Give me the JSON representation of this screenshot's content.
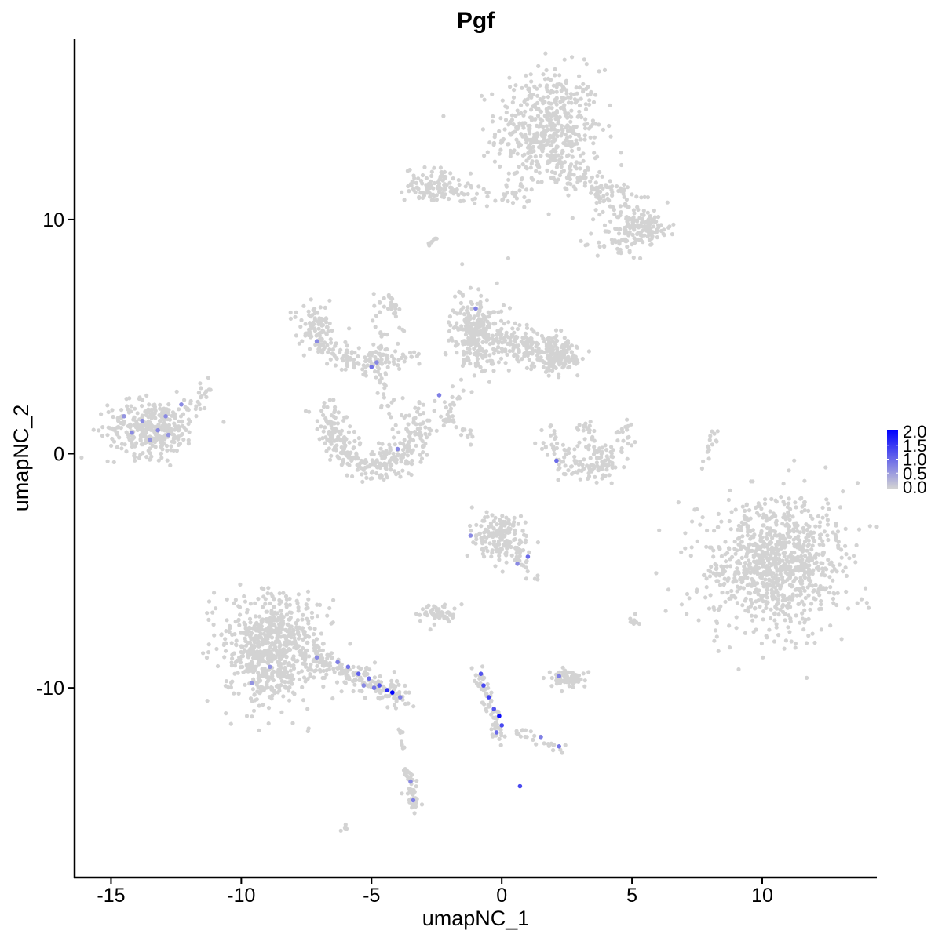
{
  "chart_data": {
    "type": "scatter",
    "title": "Pgf",
    "xlabel": "umapNC_1",
    "ylabel": "umapNC_2",
    "xlim": [
      -16.4,
      14.4
    ],
    "ylim": [
      -18.1,
      17.7
    ],
    "xticks": [
      -15,
      -10,
      -5,
      0,
      5,
      10
    ],
    "yticks": [
      -10,
      0,
      10
    ],
    "xtick_labels": [
      "-15",
      "-10",
      "-5",
      "0",
      "5",
      "10"
    ],
    "ytick_labels": [
      "-10",
      "0",
      "10"
    ],
    "grid": false,
    "legend": {
      "placement": "right",
      "type": "colorbar",
      "min": 0,
      "max": 2,
      "ticks": [
        "2.0",
        "1.5",
        "1.0",
        "0.5",
        "0.0"
      ],
      "low_color": "#d3d3d3",
      "high_color": "#0000ff"
    },
    "point_groups": [
      {
        "shape": "blob",
        "center": [
          1.8,
          13.8
        ],
        "spread": [
          1.0,
          1.3
        ],
        "count": 520
      },
      {
        "shape": "blob",
        "center": [
          -2.7,
          11.5
        ],
        "spread": [
          0.5,
          0.35
        ],
        "count": 90
      },
      {
        "shape": "strand",
        "from": [
          -2.3,
          11.3
        ],
        "to": [
          0.8,
          11.0
        ],
        "width": 0.25,
        "count": 60
      },
      {
        "shape": "strand",
        "from": [
          2.4,
          12.2
        ],
        "to": [
          4.3,
          10.8
        ],
        "width": 0.3,
        "count": 70
      },
      {
        "shape": "strand",
        "from": [
          4.3,
          10.8
        ],
        "to": [
          5.6,
          9.5
        ],
        "width": 0.4,
        "count": 90
      },
      {
        "shape": "blob",
        "center": [
          5.7,
          9.7
        ],
        "spread": [
          0.4,
          0.3
        ],
        "count": 60
      },
      {
        "shape": "blob",
        "center": [
          4.6,
          9.0
        ],
        "spread": [
          0.5,
          0.35
        ],
        "count": 50
      },
      {
        "shape": "blob",
        "center": [
          -13.4,
          1.1
        ],
        "spread": [
          0.85,
          0.6
        ],
        "count": 330
      },
      {
        "shape": "strand",
        "from": [
          -12.2,
          1.8
        ],
        "to": [
          -11.3,
          2.8
        ],
        "width": 0.2,
        "count": 25
      },
      {
        "shape": "blob",
        "center": [
          -7.2,
          5.4
        ],
        "spread": [
          0.35,
          0.45
        ],
        "count": 90
      },
      {
        "shape": "strand",
        "from": [
          -7.0,
          4.6
        ],
        "to": [
          -4.6,
          3.7
        ],
        "width": 0.3,
        "count": 90
      },
      {
        "shape": "strand",
        "from": [
          -5.0,
          4.0
        ],
        "to": [
          -3.3,
          4.2
        ],
        "width": 0.25,
        "count": 40
      },
      {
        "shape": "strand",
        "from": [
          -4.8,
          7.5
        ],
        "to": [
          -4.6,
          3.9
        ],
        "width": 0.15,
        "count": 25
      },
      {
        "shape": "strand",
        "from": [
          -4.4,
          7.0
        ],
        "to": [
          -3.6,
          4.5
        ],
        "width": 0.08,
        "count": 20
      },
      {
        "shape": "strand",
        "from": [
          -4.6,
          3.6
        ],
        "to": [
          -4.4,
          1.8
        ],
        "width": 0.15,
        "count": 20
      },
      {
        "shape": "arc",
        "center": [
          -4.9,
          1.5
        ],
        "radii": [
          1.7,
          2.0
        ],
        "width": 0.35,
        "count": 330
      },
      {
        "shape": "blob",
        "center": [
          -1.0,
          5.2
        ],
        "spread": [
          0.45,
          0.8
        ],
        "count": 260
      },
      {
        "shape": "strand",
        "from": [
          -0.4,
          4.9
        ],
        "to": [
          2.5,
          4.2
        ],
        "width": 0.4,
        "count": 220
      },
      {
        "shape": "blob",
        "center": [
          2.2,
          4.0
        ],
        "spread": [
          0.45,
          0.3
        ],
        "count": 90
      },
      {
        "shape": "strand",
        "from": [
          -1.4,
          3.0
        ],
        "to": [
          -2.4,
          1.2
        ],
        "width": 0.2,
        "count": 20
      },
      {
        "shape": "strand",
        "from": [
          -2.2,
          1.6
        ],
        "to": [
          -1.2,
          0.7
        ],
        "width": 0.12,
        "count": 25
      },
      {
        "shape": "arc",
        "center": [
          3.3,
          1.2
        ],
        "radii": [
          1.4,
          2.0
        ],
        "width": 0.3,
        "count": 140,
        "partial": true
      },
      {
        "shape": "strand",
        "from": [
          2.9,
          1.4
        ],
        "to": [
          3.8,
          -0.3
        ],
        "width": 0.25,
        "count": 40
      },
      {
        "shape": "strand",
        "from": [
          8.2,
          1.0
        ],
        "to": [
          7.7,
          -0.6
        ],
        "width": 0.08,
        "count": 15
      },
      {
        "shape": "blob",
        "center": [
          10.5,
          -4.7
        ],
        "spread": [
          1.3,
          1.35
        ],
        "count": 950
      },
      {
        "shape": "blob",
        "center": [
          -0.1,
          -3.5
        ],
        "spread": [
          0.55,
          0.5
        ],
        "count": 170
      },
      {
        "shape": "strand",
        "from": [
          0.5,
          -4.2
        ],
        "to": [
          1.3,
          -5.4
        ],
        "width": 0.12,
        "count": 20
      },
      {
        "shape": "blob",
        "center": [
          -8.8,
          -8.3
        ],
        "spread": [
          0.9,
          1.1
        ],
        "count": 720
      },
      {
        "shape": "strand",
        "from": [
          -7.4,
          -8.6
        ],
        "to": [
          -3.8,
          -10.4
        ],
        "width": 0.3,
        "count": 190
      },
      {
        "shape": "blob",
        "center": [
          -2.5,
          -6.8
        ],
        "spread": [
          0.35,
          0.2
        ],
        "count": 50
      },
      {
        "shape": "strand",
        "from": [
          -0.9,
          -9.3
        ],
        "to": [
          -0.1,
          -12.1
        ],
        "width": 0.15,
        "count": 70
      },
      {
        "shape": "strand",
        "from": [
          0.6,
          -11.8
        ],
        "to": [
          2.4,
          -12.7
        ],
        "width": 0.12,
        "count": 25
      },
      {
        "shape": "blob",
        "center": [
          2.5,
          -9.6
        ],
        "spread": [
          0.35,
          0.18
        ],
        "count": 70
      },
      {
        "shape": "strand",
        "from": [
          -3.6,
          -13.5
        ],
        "to": [
          -3.3,
          -15.3
        ],
        "width": 0.12,
        "count": 45
      },
      {
        "shape": "strand",
        "from": [
          -6.2,
          -16.1
        ],
        "to": [
          -5.9,
          -15.9
        ],
        "width": 0.05,
        "count": 6
      },
      {
        "shape": "strand",
        "from": [
          -3.9,
          -11.8
        ],
        "to": [
          -3.8,
          -12.6
        ],
        "width": 0.05,
        "count": 8
      },
      {
        "shape": "strand",
        "from": [
          5.0,
          -7.0
        ],
        "to": [
          5.3,
          -7.5
        ],
        "width": 0.1,
        "count": 10
      },
      {
        "shape": "strand",
        "from": [
          -2.8,
          8.9
        ],
        "to": [
          -2.5,
          9.2
        ],
        "width": 0.05,
        "count": 8
      }
    ],
    "expressing_points": [
      {
        "x": -4.2,
        "y": -10.2,
        "value": 2.0
      },
      {
        "x": -4.4,
        "y": -10.1,
        "value": 1.6
      },
      {
        "x": -4.7,
        "y": -9.9,
        "value": 1.2
      },
      {
        "x": -5.1,
        "y": -9.6,
        "value": 1.0
      },
      {
        "x": -5.5,
        "y": -9.4,
        "value": 1.1
      },
      {
        "x": -5.9,
        "y": -9.1,
        "value": 0.9
      },
      {
        "x": -6.3,
        "y": -8.9,
        "value": 0.8
      },
      {
        "x": -4.9,
        "y": -10.0,
        "value": 0.9
      },
      {
        "x": -5.3,
        "y": -9.9,
        "value": 0.7
      },
      {
        "x": -3.9,
        "y": -10.4,
        "value": 0.8
      },
      {
        "x": -7.1,
        "y": -8.7,
        "value": 0.7
      },
      {
        "x": -8.9,
        "y": -9.1,
        "value": 0.6
      },
      {
        "x": -9.6,
        "y": -9.8,
        "value": 0.6
      },
      {
        "x": -0.8,
        "y": -9.4,
        "value": 1.2
      },
      {
        "x": -0.7,
        "y": -9.9,
        "value": 1.3
      },
      {
        "x": -0.5,
        "y": -10.4,
        "value": 1.4
      },
      {
        "x": -0.3,
        "y": -10.9,
        "value": 1.2
      },
      {
        "x": -0.1,
        "y": -11.2,
        "value": 1.9
      },
      {
        "x": 0.0,
        "y": -11.6,
        "value": 1.3
      },
      {
        "x": -0.2,
        "y": -11.9,
        "value": 1.0
      },
      {
        "x": 0.7,
        "y": -14.2,
        "value": 1.3
      },
      {
        "x": 2.2,
        "y": -12.5,
        "value": 0.9
      },
      {
        "x": 1.5,
        "y": -12.1,
        "value": 0.8
      },
      {
        "x": 2.2,
        "y": -9.5,
        "value": 0.8
      },
      {
        "x": -3.4,
        "y": -14.8,
        "value": 0.8
      },
      {
        "x": -3.5,
        "y": -14.0,
        "value": 0.7
      },
      {
        "x": -13.8,
        "y": 1.4,
        "value": 0.7
      },
      {
        "x": -13.2,
        "y": 1.0,
        "value": 0.7
      },
      {
        "x": -14.2,
        "y": 0.9,
        "value": 0.7
      },
      {
        "x": -12.9,
        "y": 1.6,
        "value": 0.7
      },
      {
        "x": -13.5,
        "y": 0.6,
        "value": 0.6
      },
      {
        "x": -12.3,
        "y": 2.1,
        "value": 0.7
      },
      {
        "x": -14.5,
        "y": 1.6,
        "value": 0.6
      },
      {
        "x": -12.8,
        "y": 0.8,
        "value": 0.6
      },
      {
        "x": -5.0,
        "y": 3.7,
        "value": 0.9
      },
      {
        "x": -4.8,
        "y": 3.9,
        "value": 0.7
      },
      {
        "x": -7.1,
        "y": 4.8,
        "value": 0.7
      },
      {
        "x": -4.0,
        "y": 0.2,
        "value": 0.7
      },
      {
        "x": -1.0,
        "y": 6.2,
        "value": 0.8
      },
      {
        "x": -2.4,
        "y": 2.5,
        "value": 0.8
      },
      {
        "x": 2.1,
        "y": -0.3,
        "value": 1.0
      },
      {
        "x": -1.2,
        "y": -3.5,
        "value": 0.7
      },
      {
        "x": 1.0,
        "y": -4.4,
        "value": 1.0
      },
      {
        "x": 0.6,
        "y": -4.7,
        "value": 0.7
      }
    ]
  }
}
